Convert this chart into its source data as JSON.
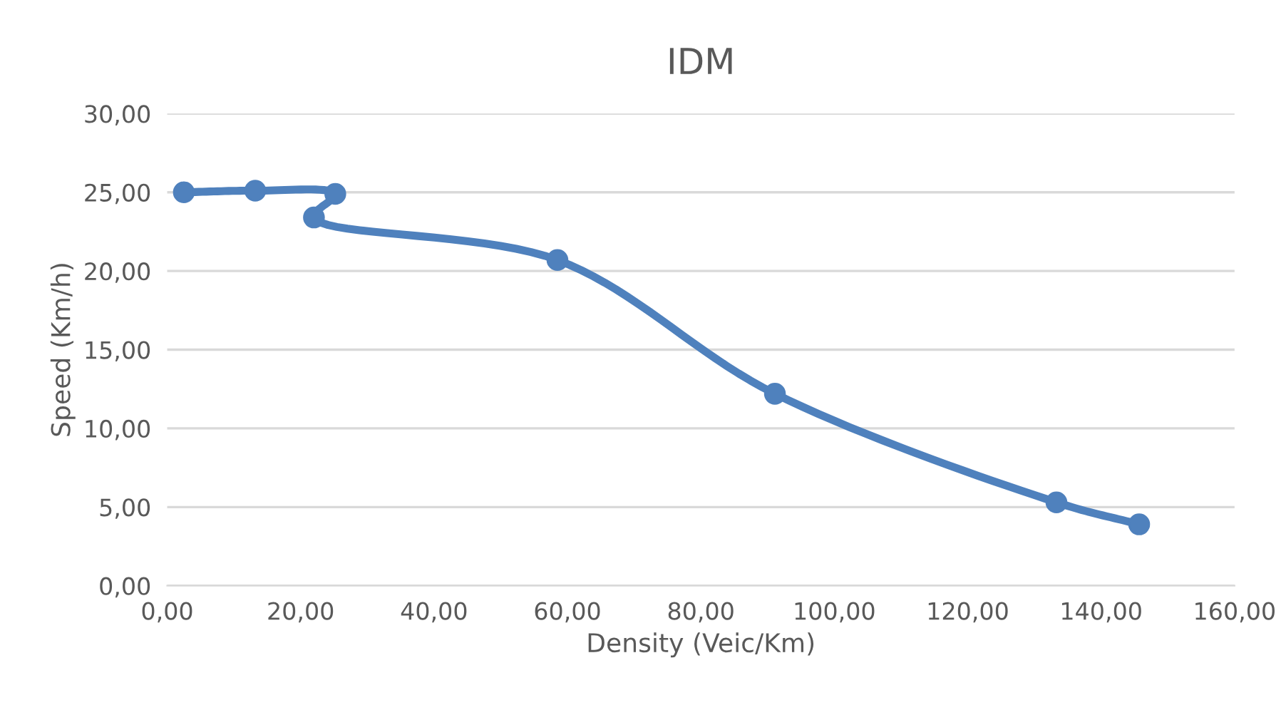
{
  "chart_data": {
    "type": "line",
    "title": "IDM",
    "xlabel": "Density (Veic/Km)",
    "ylabel": "Speed (Km/h)",
    "series": [
      {
        "color": "#4f81bd",
        "x": [
          2.5,
          13.2,
          25.2,
          22.0,
          58.5,
          91.1,
          133.3,
          145.7
        ],
        "values": [
          25.0,
          25.1,
          24.9,
          23.4,
          20.7,
          12.2,
          5.3,
          3.9
        ]
      }
    ],
    "xlim": [
      0,
      160
    ],
    "ylim": [
      0,
      30
    ],
    "xticks": [
      {
        "value": 0,
        "label": "0,00"
      },
      {
        "value": 20,
        "label": "20,00"
      },
      {
        "value": 40,
        "label": "40,00"
      },
      {
        "value": 60,
        "label": "60,00"
      },
      {
        "value": 80,
        "label": "80,00"
      },
      {
        "value": 100,
        "label": "100,00"
      },
      {
        "value": 120,
        "label": "120,00"
      },
      {
        "value": 140,
        "label": "140,00"
      },
      {
        "value": 160,
        "label": "160,00"
      }
    ],
    "yticks": [
      {
        "value": 0,
        "label": "0,00"
      },
      {
        "value": 5,
        "label": "5,00"
      },
      {
        "value": 10,
        "label": "10,00"
      },
      {
        "value": 15,
        "label": "15,00"
      },
      {
        "value": 20,
        "label": "20,00"
      },
      {
        "value": 25,
        "label": "25,00"
      },
      {
        "value": 30,
        "label": "30,00"
      }
    ],
    "grid": "y",
    "marker": "circle",
    "line_style": "solid",
    "legend": false
  }
}
